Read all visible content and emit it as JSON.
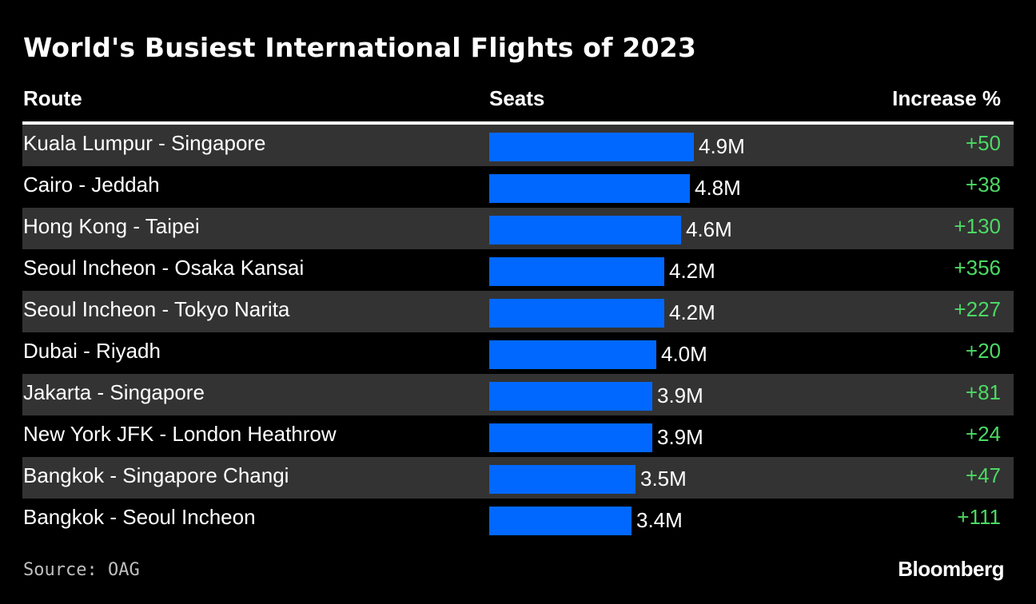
{
  "header": {
    "title": "World's Busiest International Flights of 2023"
  },
  "columns": {
    "route": "Route",
    "seats": "Seats",
    "increase": "Increase %"
  },
  "footer": {
    "source": "Source: OAG",
    "brand": "Bloomberg"
  },
  "colors": {
    "bar": "#0068ff",
    "increase": "#4cd964",
    "stripe": "#333333",
    "background": "#000000"
  },
  "chart_data": {
    "type": "table",
    "title": "World's Busiest International Flights of 2023",
    "columns": [
      "Route",
      "Seats",
      "Increase %"
    ],
    "value_unit": "M",
    "xlim": [
      0,
      4.9
    ],
    "rows": [
      {
        "route": "Kuala Lumpur - Singapore",
        "seats": 4.9,
        "seats_label": "4.9M",
        "increase": "+50"
      },
      {
        "route": "Cairo - Jeddah",
        "seats": 4.8,
        "seats_label": "4.8M",
        "increase": "+38"
      },
      {
        "route": "Hong Kong - Taipei",
        "seats": 4.6,
        "seats_label": "4.6M",
        "increase": "+130"
      },
      {
        "route": "Seoul Incheon - Osaka Kansai",
        "seats": 4.2,
        "seats_label": "4.2M",
        "increase": "+356"
      },
      {
        "route": "Seoul Incheon - Tokyo Narita",
        "seats": 4.2,
        "seats_label": "4.2M",
        "increase": "+227"
      },
      {
        "route": "Dubai - Riyadh",
        "seats": 4.0,
        "seats_label": "4.0M",
        "increase": "+20"
      },
      {
        "route": "Jakarta - Singapore",
        "seats": 3.9,
        "seats_label": "3.9M",
        "increase": "+81"
      },
      {
        "route": "New York JFK - London Heathrow",
        "seats": 3.9,
        "seats_label": "3.9M",
        "increase": "+24"
      },
      {
        "route": "Bangkok - Singapore Changi",
        "seats": 3.5,
        "seats_label": "3.5M",
        "increase": "+47"
      },
      {
        "route": "Bangkok - Seoul Incheon",
        "seats": 3.4,
        "seats_label": "3.4M",
        "increase": "+111"
      }
    ]
  }
}
